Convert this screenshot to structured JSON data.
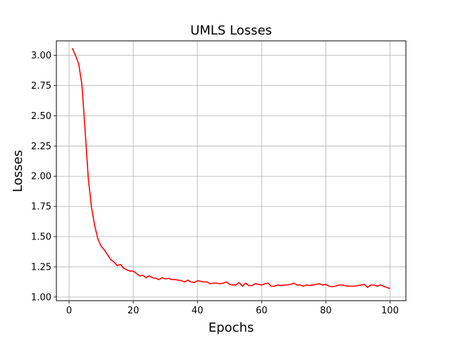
{
  "chart_data": {
    "type": "line",
    "title": "UMLS Losses",
    "xlabel": "Epochs",
    "ylabel": "Losses",
    "xlim": [
      -3.95,
      104.95
    ],
    "ylim": [
      0.97,
      3.12
    ],
    "xticks": [
      0,
      20,
      40,
      60,
      80,
      100
    ],
    "xtick_labels": [
      "0",
      "20",
      "40",
      "60",
      "80",
      "100"
    ],
    "yticks": [
      1.0,
      1.25,
      1.5,
      1.75,
      2.0,
      2.25,
      2.5,
      2.75,
      3.0
    ],
    "ytick_labels": [
      "1.00",
      "1.25",
      "1.50",
      "1.75",
      "2.00",
      "2.25",
      "2.50",
      "2.75",
      "3.00"
    ],
    "grid": true,
    "series": [
      {
        "color": "#ff0000",
        "x": [
          1,
          2,
          3,
          4,
          5,
          6,
          7,
          8,
          9,
          10,
          11,
          12,
          13,
          14,
          15,
          16,
          17,
          18,
          19,
          20,
          21,
          22,
          23,
          24,
          25,
          26,
          27,
          28,
          29,
          30,
          31,
          32,
          33,
          34,
          35,
          36,
          37,
          38,
          39,
          40,
          41,
          42,
          43,
          44,
          45,
          46,
          47,
          48,
          49,
          50,
          51,
          52,
          53,
          54,
          55,
          56,
          57,
          58,
          59,
          60,
          61,
          62,
          63,
          64,
          65,
          66,
          67,
          68,
          69,
          70,
          71,
          72,
          73,
          74,
          75,
          76,
          77,
          78,
          79,
          80,
          81,
          82,
          83,
          84,
          85,
          86,
          87,
          88,
          89,
          90,
          91,
          92,
          93,
          94,
          95,
          96,
          97,
          98,
          99,
          100
        ],
        "y": [
          3.06,
          3.0,
          2.93,
          2.76,
          2.38,
          1.98,
          1.74,
          1.59,
          1.48,
          1.42,
          1.39,
          1.35,
          1.31,
          1.29,
          1.26,
          1.27,
          1.24,
          1.225,
          1.215,
          1.215,
          1.195,
          1.175,
          1.18,
          1.16,
          1.175,
          1.16,
          1.155,
          1.145,
          1.16,
          1.15,
          1.155,
          1.145,
          1.145,
          1.14,
          1.135,
          1.125,
          1.14,
          1.125,
          1.12,
          1.135,
          1.13,
          1.125,
          1.125,
          1.11,
          1.115,
          1.115,
          1.11,
          1.115,
          1.125,
          1.105,
          1.1,
          1.1,
          1.12,
          1.09,
          1.115,
          1.095,
          1.095,
          1.11,
          1.105,
          1.1,
          1.11,
          1.115,
          1.09,
          1.09,
          1.1,
          1.095,
          1.1,
          1.1,
          1.105,
          1.115,
          1.1,
          1.1,
          1.09,
          1.1,
          1.095,
          1.1,
          1.105,
          1.11,
          1.1,
          1.105,
          1.09,
          1.085,
          1.09,
          1.1,
          1.1,
          1.095,
          1.09,
          1.09,
          1.09,
          1.095,
          1.1,
          1.105,
          1.08,
          1.1,
          1.1,
          1.09,
          1.1,
          1.09,
          1.08,
          1.07
        ]
      }
    ]
  }
}
